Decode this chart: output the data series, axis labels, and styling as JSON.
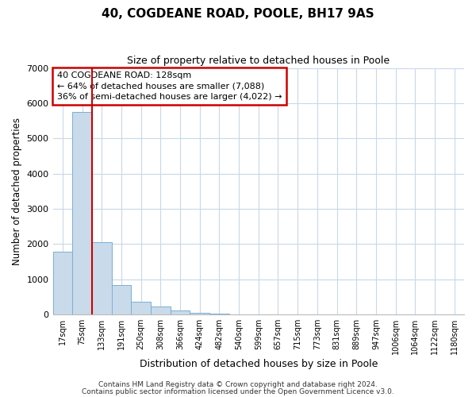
{
  "title": "40, COGDEANE ROAD, POOLE, BH17 9AS",
  "subtitle": "Size of property relative to detached houses in Poole",
  "xlabel": "Distribution of detached houses by size in Poole",
  "ylabel": "Number of detached properties",
  "bar_labels": [
    "17sqm",
    "75sqm",
    "133sqm",
    "191sqm",
    "250sqm",
    "308sqm",
    "366sqm",
    "424sqm",
    "482sqm",
    "540sqm",
    "599sqm",
    "657sqm",
    "715sqm",
    "773sqm",
    "831sqm",
    "889sqm",
    "947sqm",
    "1006sqm",
    "1064sqm",
    "1122sqm",
    "1180sqm"
  ],
  "bar_values": [
    1780,
    5750,
    2050,
    830,
    370,
    220,
    105,
    55,
    25,
    10,
    5,
    2,
    1,
    0,
    0,
    0,
    0,
    0,
    0,
    0,
    0
  ],
  "bar_color": "#c9daea",
  "bar_edge_color": "#7bafd4",
  "grid_color": "#c8d8e8",
  "annotation_box_color": "#ffffff",
  "annotation_border_color": "#cc0000",
  "vline_color": "#cc0000",
  "vline_x_index": 2,
  "annotation_title": "40 COGDEANE ROAD: 128sqm",
  "annotation_line1": "← 64% of detached houses are smaller (7,088)",
  "annotation_line2": "36% of semi-detached houses are larger (4,022) →",
  "ylim": [
    0,
    7000
  ],
  "yticks": [
    0,
    1000,
    2000,
    3000,
    4000,
    5000,
    6000,
    7000
  ],
  "footer1": "Contains HM Land Registry data © Crown copyright and database right 2024.",
  "footer2": "Contains public sector information licensed under the Open Government Licence v3.0.",
  "background_color": "#ffffff",
  "figsize": [
    6.0,
    5.0
  ],
  "dpi": 100
}
